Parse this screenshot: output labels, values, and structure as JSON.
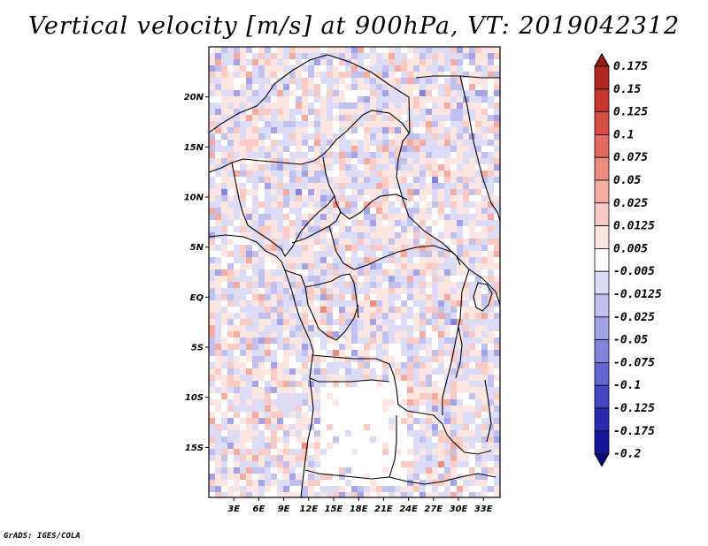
{
  "title": "Vertical velocity [m/s] at 900hPa, VT: 2019042312",
  "credit": "GrADS: IGES/COLA",
  "map": {
    "lat_labels": [
      "20N",
      "15N",
      "10N",
      "5N",
      "EQ",
      "5S",
      "10S",
      "15S"
    ],
    "lat_values": [
      20,
      15,
      10,
      5,
      0,
      -5,
      -10,
      -15
    ],
    "lon_labels": [
      "3E",
      "6E",
      "9E",
      "12E",
      "15E",
      "18E",
      "21E",
      "24E",
      "27E",
      "30E",
      "33E"
    ],
    "lon_values": [
      3,
      6,
      9,
      12,
      15,
      18,
      21,
      24,
      27,
      30,
      33
    ],
    "lat_range": [
      -20,
      25
    ],
    "lon_range": [
      0,
      35
    ]
  },
  "colorbar": {
    "labels": [
      "0.175",
      "0.15",
      "0.125",
      "0.1",
      "0.075",
      "0.05",
      "0.025",
      "0.0125",
      "0.005",
      "-0.005",
      "-0.0125",
      "-0.025",
      "-0.05",
      "-0.075",
      "-0.1",
      "-0.125",
      "-0.175",
      "-0.2"
    ],
    "colors": [
      "#9a1a16",
      "#b22520",
      "#c63630",
      "#d64b43",
      "#e26a60",
      "#ec8b80",
      "#f4aca2",
      "#f9cbc4",
      "#fde6e2",
      "#ffffff",
      "#dcdcf6",
      "#c1c1ef",
      "#a3a3e6",
      "#8484dc",
      "#6565d0",
      "#4646c2",
      "#2b2bb0",
      "#16169a",
      "#0a0a80"
    ]
  }
}
